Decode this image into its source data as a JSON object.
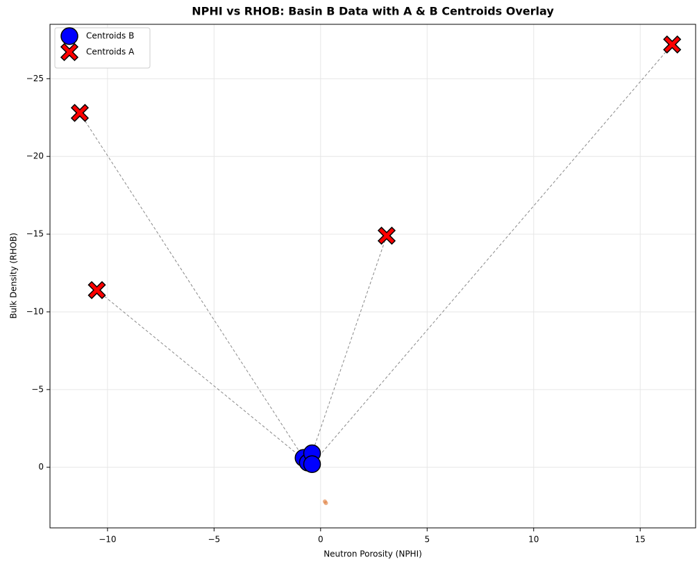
{
  "chart_data": {
    "type": "scatter",
    "title": "NPHI vs RHOB: Basin B Data with A & B Centroids Overlay",
    "x_label": "Neutron Porosity (NPHI)",
    "y_label": "Bulk Density (RHOB)",
    "xlim": [
      -12.7,
      17.6
    ],
    "ylim": [
      3.9,
      -28.5
    ],
    "xticks": [
      {
        "value": -10,
        "label": "−10"
      },
      {
        "value": -5,
        "label": "−5"
      },
      0,
      5,
      10,
      15
    ],
    "yticks": [
      0,
      {
        "value": -5,
        "label": "−5"
      },
      {
        "value": -10,
        "label": "−10"
      },
      {
        "value": -15,
        "label": "−15"
      },
      {
        "value": -20,
        "label": "−20"
      },
      {
        "value": -25,
        "label": "−25"
      }
    ],
    "grid": true,
    "legend": "upper left",
    "series": [
      {
        "name": "Centroids B",
        "color": "#0000ff",
        "marker": "circle",
        "x": [
          -0.8,
          -0.6,
          -0.4,
          -0.4
        ],
        "values": [
          -0.6,
          -0.3,
          -0.9,
          -0.2
        ]
      },
      {
        "name": "Centroids A",
        "color": "#ff0000",
        "marker": "x",
        "x": [
          -11.3,
          -10.5,
          3.1,
          16.5
        ],
        "values": [
          -22.8,
          -11.4,
          -14.9,
          -27.2
        ]
      },
      {
        "color": "#e07b39",
        "marker": "dot",
        "x": [
          0.2,
          0.25
        ],
        "values": [
          2.2,
          2.3
        ]
      }
    ]
  }
}
